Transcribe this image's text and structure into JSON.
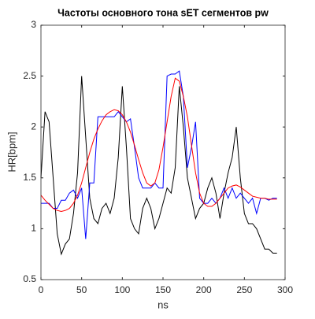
{
  "chart_data": {
    "type": "line",
    "title": "Частоты основного тона sET сегментов pw",
    "x_label": "ns",
    "y_label": "HR[bpm]",
    "x": [
      0,
      5,
      10,
      15,
      20,
      25,
      30,
      35,
      40,
      45,
      50,
      55,
      60,
      65,
      70,
      75,
      80,
      85,
      90,
      95,
      100,
      105,
      110,
      115,
      120,
      125,
      130,
      135,
      140,
      145,
      150,
      155,
      160,
      165,
      170,
      175,
      180,
      185,
      190,
      195,
      200,
      205,
      210,
      215,
      220,
      225,
      230,
      235,
      240,
      245,
      250,
      255,
      260,
      265,
      270,
      275,
      280,
      285,
      290
    ],
    "series": [
      {
        "name": "black",
        "color": "#000000",
        "values": [
          1.5,
          2.15,
          2.05,
          1.5,
          0.95,
          0.75,
          0.85,
          0.9,
          1.15,
          1.55,
          2.5,
          1.9,
          1.3,
          1.1,
          1.05,
          1.2,
          1.25,
          1.15,
          1.3,
          1.7,
          2.4,
          1.8,
          1.1,
          1.0,
          0.95,
          1.2,
          1.3,
          1.2,
          1.0,
          1.1,
          1.25,
          1.4,
          1.35,
          1.6,
          2.4,
          2.0,
          1.5,
          1.3,
          1.1,
          1.2,
          1.25,
          1.4,
          1.5,
          1.35,
          1.1,
          1.35,
          1.55,
          1.7,
          2.0,
          1.5,
          1.15,
          1.05,
          1.05,
          1.0,
          0.9,
          0.8,
          0.8,
          0.76,
          0.76
        ]
      },
      {
        "name": "blue",
        "color": "#0000ff",
        "values": [
          1.25,
          1.25,
          1.25,
          1.2,
          1.2,
          1.28,
          1.28,
          1.35,
          1.38,
          1.3,
          1.4,
          0.9,
          1.45,
          1.45,
          2.1,
          2.1,
          2.1,
          2.1,
          2.1,
          2.15,
          2.1,
          2.05,
          2.08,
          1.8,
          1.5,
          1.4,
          1.4,
          1.4,
          1.45,
          1.4,
          1.4,
          2.5,
          2.52,
          2.52,
          2.55,
          2.3,
          1.6,
          1.8,
          2.05,
          1.3,
          1.25,
          1.25,
          1.3,
          1.25,
          1.3,
          1.4,
          1.3,
          1.4,
          1.3,
          1.35,
          1.3,
          1.25,
          1.3,
          1.15,
          1.3,
          1.3,
          1.28,
          1.3,
          1.3
        ]
      },
      {
        "name": "red",
        "color": "#ff0000",
        "values": [
          1.33,
          1.28,
          1.24,
          1.2,
          1.18,
          1.17,
          1.18,
          1.2,
          1.25,
          1.33,
          1.45,
          1.6,
          1.75,
          1.88,
          1.98,
          2.06,
          2.12,
          2.15,
          2.17,
          2.16,
          2.12,
          2.05,
          1.95,
          1.82,
          1.68,
          1.55,
          1.45,
          1.42,
          1.45,
          1.58,
          1.8,
          2.05,
          2.3,
          2.48,
          2.45,
          2.3,
          2.1,
          1.82,
          1.55,
          1.35,
          1.25,
          1.22,
          1.22,
          1.25,
          1.3,
          1.35,
          1.4,
          1.42,
          1.43,
          1.41,
          1.38,
          1.35,
          1.32,
          1.31,
          1.3,
          1.3,
          1.29,
          1.29,
          1.29
        ]
      }
    ],
    "xlim": [
      0,
      300
    ],
    "xticks": [
      0,
      50,
      100,
      150,
      200,
      250,
      300
    ],
    "ylim": [
      0.5,
      3
    ],
    "yticks": [
      0.5,
      1,
      1.5,
      2,
      2.5,
      3
    ],
    "grid": false
  }
}
